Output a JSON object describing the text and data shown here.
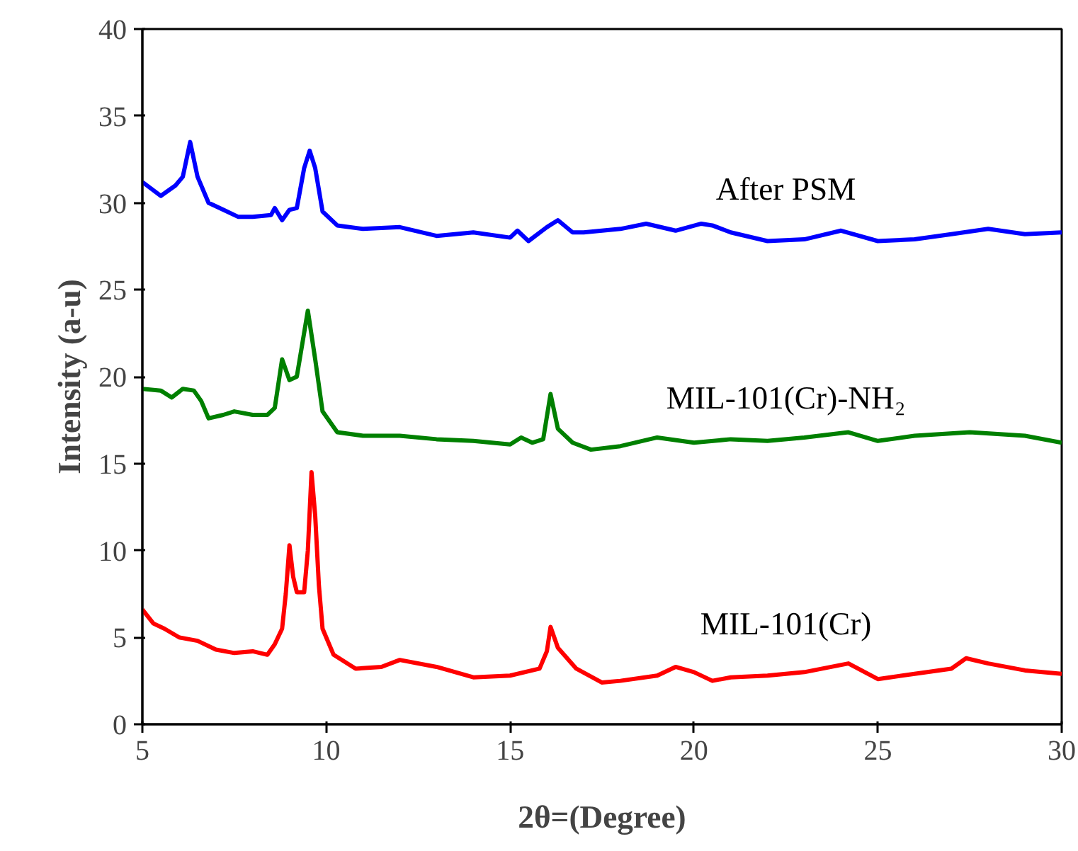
{
  "chart_data": {
    "type": "line",
    "xlabel": "2θ=(Degree)",
    "ylabel": "Intensity (a-u)",
    "xlim": [
      5,
      30
    ],
    "ylim": [
      0,
      40
    ],
    "xticks": [
      5,
      10,
      15,
      20,
      25,
      30
    ],
    "yticks": [
      0,
      5,
      10,
      15,
      20,
      25,
      30,
      35,
      40
    ],
    "grid": false,
    "legend": false,
    "line_style": "solid",
    "series": [
      {
        "name": "After PSM",
        "color": "#0000ff",
        "x": [
          5,
          5.5,
          5.9,
          6.1,
          6.3,
          6.5,
          6.8,
          7.2,
          7.6,
          8,
          8.5,
          8.6,
          8.8,
          9.0,
          9.2,
          9.4,
          9.55,
          9.7,
          9.9,
          10.3,
          11,
          12,
          13,
          14,
          15,
          15.2,
          15.5,
          16,
          16.3,
          16.7,
          17,
          18,
          18.7,
          19.5,
          20.2,
          20.5,
          21,
          22,
          23,
          24,
          25,
          26,
          27,
          28,
          29,
          30
        ],
        "values": [
          31.2,
          30.4,
          31,
          31.5,
          33.5,
          31.5,
          30,
          29.6,
          29.2,
          29.2,
          29.3,
          29.7,
          29,
          29.6,
          29.7,
          32,
          33,
          32,
          29.5,
          28.7,
          28.5,
          28.6,
          28.1,
          28.3,
          28,
          28.4,
          27.8,
          28.6,
          29,
          28.3,
          28.3,
          28.5,
          28.8,
          28.4,
          28.8,
          28.7,
          28.3,
          27.8,
          27.9,
          28.4,
          27.8,
          27.9,
          28.2,
          28.5,
          28.2,
          28.3
        ]
      },
      {
        "name": "MIL-101(Cr)-NH₂",
        "color": "#008000",
        "x": [
          5,
          5.5,
          5.8,
          6.1,
          6.4,
          6.6,
          6.8,
          7.2,
          7.5,
          8,
          8.4,
          8.6,
          8.8,
          9.0,
          9.2,
          9.5,
          9.7,
          9.9,
          10.3,
          11,
          12,
          13,
          14,
          15,
          15.3,
          15.6,
          15.9,
          16.1,
          16.3,
          16.7,
          17.2,
          18,
          19,
          20,
          21,
          22,
          23,
          24.2,
          25,
          26,
          27.5,
          29,
          30
        ],
        "values": [
          19.3,
          19.2,
          18.8,
          19.3,
          19.2,
          18.6,
          17.6,
          17.8,
          18,
          17.8,
          17.8,
          18.2,
          21,
          19.8,
          20,
          23.8,
          21,
          18,
          16.8,
          16.6,
          16.6,
          16.4,
          16.3,
          16.1,
          16.5,
          16.2,
          16.4,
          19,
          17,
          16.2,
          15.8,
          16,
          16.5,
          16.2,
          16.4,
          16.3,
          16.5,
          16.8,
          16.3,
          16.6,
          16.8,
          16.6,
          16.2
        ]
      },
      {
        "name": "MIL-101(Cr)",
        "color": "#ff0000",
        "x": [
          5,
          5.3,
          5.6,
          6,
          6.5,
          7,
          7.5,
          8,
          8.4,
          8.6,
          8.8,
          8.9,
          9.0,
          9.1,
          9.2,
          9.4,
          9.5,
          9.6,
          9.7,
          9.8,
          9.9,
          10.2,
          10.8,
          11.5,
          12,
          13,
          14,
          15,
          15.8,
          16.0,
          16.1,
          16.3,
          16.8,
          17.5,
          18,
          19,
          19.5,
          20,
          20.5,
          21,
          22,
          23,
          24.2,
          25,
          26,
          27,
          27.4,
          28,
          29,
          30
        ],
        "values": [
          6.6,
          5.8,
          5.5,
          5,
          4.8,
          4.3,
          4.1,
          4.2,
          4.0,
          4.6,
          5.5,
          7.5,
          10.3,
          8.5,
          7.6,
          7.6,
          10,
          14.5,
          12,
          8,
          5.5,
          4,
          3.2,
          3.3,
          3.7,
          3.3,
          2.7,
          2.8,
          3.2,
          4.2,
          5.6,
          4.4,
          3.2,
          2.4,
          2.5,
          2.8,
          3.3,
          3,
          2.5,
          2.7,
          2.8,
          3,
          3.5,
          2.6,
          2.9,
          3.2,
          3.8,
          3.5,
          3.1,
          2.9
        ]
      }
    ]
  }
}
